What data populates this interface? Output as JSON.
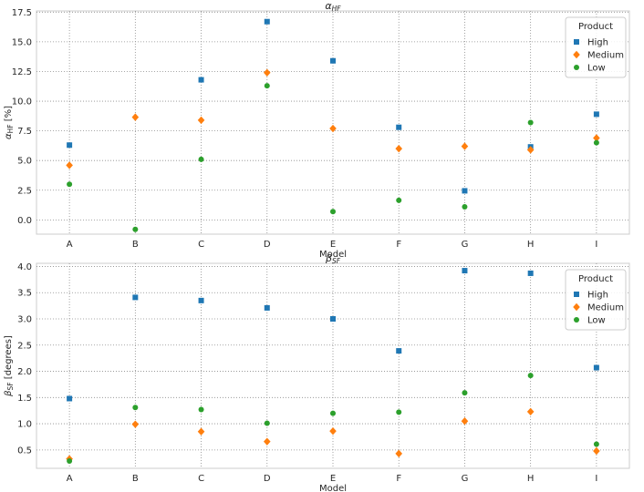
{
  "colors": {
    "High": "#1f77b4",
    "Medium": "#ff7f0e",
    "Low": "#2ca02c"
  },
  "legend": {
    "title": "Product",
    "placement": "top-right"
  },
  "chart_data": [
    {
      "type": "scatter",
      "title": {
        "symbol": "α",
        "sub": "HF"
      },
      "xlabel": "Model",
      "ylabel": {
        "symbol": "α",
        "sub": "HF",
        "unit": " [%]"
      },
      "categories": [
        "A",
        "B",
        "C",
        "D",
        "E",
        "F",
        "G",
        "H",
        "I"
      ],
      "ylim": [
        -1.2,
        17.6
      ],
      "yticks": [
        "0.0",
        "2.5",
        "5.0",
        "7.5",
        "10.0",
        "12.5",
        "15.0",
        "17.5"
      ],
      "grid": true,
      "series": [
        {
          "name": "High",
          "marker": "square",
          "values": [
            6.3,
            null,
            11.8,
            16.7,
            13.4,
            7.8,
            2.45,
            6.15,
            8.9
          ]
        },
        {
          "name": "Medium",
          "marker": "diamond",
          "values": [
            4.6,
            8.65,
            8.4,
            12.4,
            7.7,
            6.0,
            6.2,
            5.9,
            6.9
          ]
        },
        {
          "name": "Low",
          "marker": "circle",
          "values": [
            3.0,
            -0.8,
            5.1,
            11.3,
            0.7,
            1.65,
            1.1,
            8.2,
            6.5
          ]
        }
      ]
    },
    {
      "type": "scatter",
      "title": {
        "symbol": "β",
        "sub": "SF"
      },
      "xlabel": "Model",
      "ylabel": {
        "symbol": "β",
        "sub": "SF",
        "unit": " [degrees]"
      },
      "categories": [
        "A",
        "B",
        "C",
        "D",
        "E",
        "F",
        "G",
        "H",
        "I"
      ],
      "ylim": [
        0.15,
        4.06
      ],
      "yticks": [
        "0.5",
        "1.0",
        "1.5",
        "2.0",
        "2.5",
        "3.0",
        "3.5",
        "4.0"
      ],
      "grid": true,
      "series": [
        {
          "name": "High",
          "marker": "square",
          "values": [
            1.48,
            3.41,
            3.35,
            3.21,
            3.0,
            2.39,
            3.92,
            3.87,
            2.07
          ]
        },
        {
          "name": "Medium",
          "marker": "diamond",
          "values": [
            0.33,
            0.99,
            0.85,
            0.66,
            0.86,
            0.43,
            1.05,
            1.23,
            0.48
          ]
        },
        {
          "name": "Low",
          "marker": "circle",
          "values": [
            0.29,
            1.31,
            1.27,
            1.01,
            1.2,
            1.22,
            1.59,
            1.92,
            0.61
          ]
        }
      ]
    }
  ]
}
